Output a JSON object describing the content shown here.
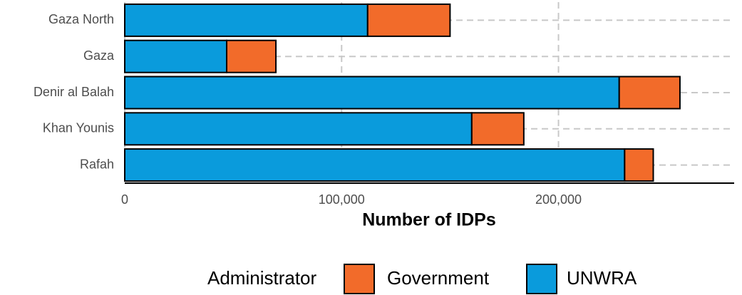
{
  "chart_data": {
    "type": "bar",
    "orientation": "horizontal",
    "stacked": true,
    "xlabel": "Number of IDPs",
    "legend_title": "Administrator",
    "legend": "bottom",
    "categories": [
      "Gaza North",
      "Gaza",
      "Denir al Balah",
      "Khan Younis",
      "Rafah"
    ],
    "series": [
      {
        "name": "Government",
        "color": "#f26b2a",
        "values": [
          38000,
          22700,
          28000,
          24000,
          13200
        ]
      },
      {
        "name": "UNWRA",
        "color": "#0a9bdc",
        "values": [
          112000,
          47000,
          228000,
          160000,
          230500
        ]
      }
    ],
    "xlim": [
      0,
      281000
    ],
    "xticks": [
      0,
      {
        "value": 100000,
        "label": "100,000"
      },
      {
        "value": 200000,
        "label": "200,000"
      }
    ],
    "grid": true
  }
}
